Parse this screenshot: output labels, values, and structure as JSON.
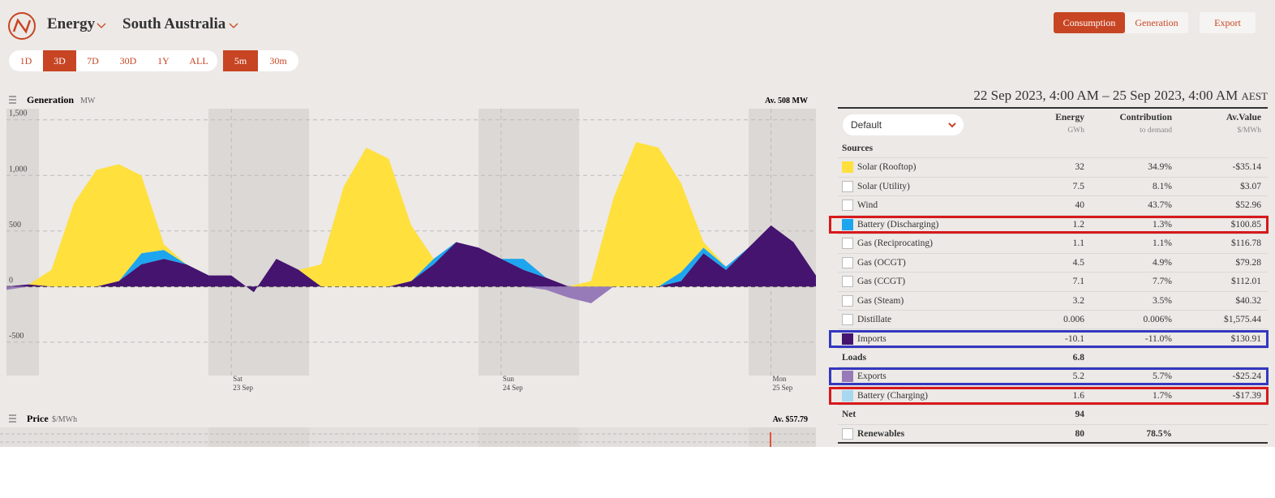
{
  "nav": {
    "menu": "Energy",
    "region": "South Australia",
    "buttons": [
      {
        "label": "Consumption",
        "selected": true
      },
      {
        "label": "Generation"
      },
      {
        "label": "Export"
      }
    ],
    "ranges": [
      {
        "label": "1D"
      },
      {
        "label": "3D",
        "selected": true
      },
      {
        "label": "7D"
      },
      {
        "label": "30D"
      },
      {
        "label": "1Y"
      },
      {
        "label": "ALL"
      }
    ],
    "intervals": [
      {
        "label": "5m",
        "selected": true
      },
      {
        "label": "30m"
      }
    ]
  },
  "chart_data": {
    "type": "area",
    "title": "Generation",
    "unit": "MW",
    "average": "Av. 508 MW",
    "categories": [
      null,
      null,
      null,
      null,
      null,
      null,
      null,
      null,
      null,
      null,
      "Sat\n23 Sep",
      null,
      null,
      null,
      null,
      null,
      null,
      null,
      null,
      null,
      null,
      null,
      "Sun\n24 Sep",
      null,
      null,
      null,
      null,
      null,
      null,
      null,
      null,
      null,
      null,
      null,
      "Mon\n25 Sep",
      null,
      null
    ],
    "series": [
      {
        "name": "Solar (Rooftop)",
        "color": "#ffe03d",
        "values": [
          0,
          0,
          150,
          750,
          1050,
          1050,
          700,
          50,
          0,
          0,
          0,
          0,
          0,
          0,
          200,
          900,
          1250,
          1150,
          500,
          0,
          0,
          0,
          0,
          0,
          0,
          0,
          50,
          800,
          1300,
          1250,
          800,
          50,
          0,
          0,
          0,
          0,
          0
        ]
      },
      {
        "name": "Battery (Discharging)",
        "color": "#1ea5f0",
        "values": [
          0,
          0,
          0,
          0,
          0,
          0,
          100,
          80,
          0,
          0,
          0,
          0,
          0,
          0,
          0,
          0,
          0,
          0,
          0,
          50,
          0,
          0,
          0,
          100,
          0,
          0,
          0,
          0,
          0,
          0,
          80,
          50,
          30,
          0,
          0,
          0,
          0
        ]
      },
      {
        "name": "Imports",
        "color": "#44146f",
        "values": [
          0,
          20,
          0,
          0,
          0,
          50,
          200,
          250,
          200,
          100,
          100,
          -50,
          250,
          150,
          0,
          0,
          0,
          0,
          50,
          200,
          400,
          350,
          250,
          150,
          80,
          0,
          0,
          0,
          0,
          0,
          50,
          300,
          150,
          350,
          550,
          400,
          100
        ]
      },
      {
        "name": "Exports",
        "color": "#977ab8",
        "values": [
          -30,
          0,
          0,
          0,
          0,
          0,
          0,
          0,
          0,
          0,
          0,
          0,
          0,
          0,
          0,
          0,
          0,
          0,
          0,
          0,
          0,
          0,
          0,
          0,
          -30,
          -100,
          -150,
          0,
          0,
          0,
          0,
          0,
          0,
          0,
          0,
          0,
          0
        ]
      }
    ],
    "ylim": [
      -800,
      1600
    ],
    "yticks": [
      -500,
      0,
      500,
      {
        "value": 1000,
        "label": "1,000"
      },
      {
        "value": 1500,
        "label": "1,500"
      }
    ],
    "grid": true
  },
  "price_panel": {
    "title": "Price",
    "unit": "$/MWh",
    "average": "Av. $57.79"
  },
  "table": {
    "period": "22 Sep 2023, 4:00 AM – 25 Sep 2023, 4:00 AM",
    "timezone": "AEST",
    "dropdown": "Default",
    "columns": [
      {
        "title": "Energy",
        "unit": "GWh"
      },
      {
        "title": "Contribution",
        "unit": "to demand"
      },
      {
        "title": "Av.Value",
        "unit": "$/MWh"
      }
    ],
    "rows": [
      {
        "name": "Sources",
        "group": true
      },
      {
        "energy": "32",
        "contribution": "34.9%",
        "value": "-$35.14"
      },
      {
        "name": "Solar (Utility)",
        "energy": "7.5",
        "contribution": "8.1%",
        "value": "$3.07"
      },
      {
        "name": "Wind",
        "energy": "40",
        "contribution": "43.7%",
        "value": "$52.96"
      },
      {
        "energy": "1.2",
        "contribution": "1.3%",
        "value": "$100.85",
        "highlight": "#d7191c"
      },
      {
        "name": "Gas (Reciprocating)",
        "energy": "1.1",
        "contribution": "1.1%",
        "value": "$116.78"
      },
      {
        "name": "Gas (OCGT)",
        "energy": "4.5",
        "contribution": "4.9%",
        "value": "$79.28"
      },
      {
        "name": "Gas (CCGT)",
        "energy": "7.1",
        "contribution": "7.7%",
        "value": "$112.01"
      },
      {
        "name": "Gas (Steam)",
        "energy": "3.2",
        "contribution": "3.5%",
        "value": "$40.32"
      },
      {
        "name": "Distillate",
        "energy": "0.006",
        "contribution": "0.006%",
        "value": "$1,575.44"
      },
      {
        "energy": "-10.1",
        "contribution": "-11.0%",
        "value": "$130.91",
        "highlight": "#3437c0"
      },
      {
        "name": "Loads",
        "energy": "6.8",
        "group": true
      },
      {
        "energy": "5.2",
        "contribution": "5.7%",
        "value": "-$25.24",
        "highlight": "#3437c0"
      },
      {
        "name": "Battery (Charging)",
        "color": "#a8d8f0",
        "energy": "1.6",
        "contribution": "1.7%",
        "value": "-$17.39",
        "highlight": "#d7191c"
      },
      {
        "name": "Net",
        "energy": "94",
        "group": true
      },
      {
        "name": "Renewables",
        "energy": "80",
        "contribution": "78.5%",
        "group": true
      }
    ]
  }
}
